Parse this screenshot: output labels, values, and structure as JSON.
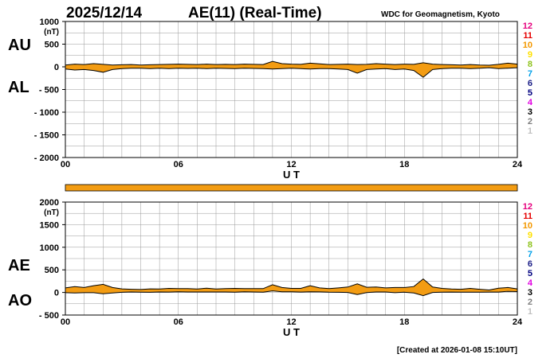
{
  "header": {
    "date": "2025/12/14",
    "title": "AE(11) (Real-Time)",
    "source": "WDC for Geomagnetism, Kyoto"
  },
  "footer": {
    "created": "[Created at 2026-01-08 15:10UT]"
  },
  "colors": {
    "fill": "#f39c12",
    "line": "#000000",
    "grid": "#999999",
    "legend": [
      "#e6007e",
      "#e60000",
      "#f39800",
      "#ffe100",
      "#8fc31f",
      "#00a0e9",
      "#1d2088",
      "#000080",
      "#e100e1",
      "#000000",
      "#808080",
      "#c0c0c0"
    ]
  },
  "legend_labels": [
    "12",
    "11",
    "10",
    "9",
    "8",
    "7",
    "6",
    "5",
    "4",
    "3",
    "2",
    "1"
  ],
  "chart_data": [
    {
      "type": "area",
      "panel": "AU/AL",
      "left_labels": [
        "AU",
        "AL"
      ],
      "unit": "(nT)",
      "xlabel": "U T",
      "xlim": [
        0,
        24
      ],
      "ylim": [
        -2000,
        1000
      ],
      "xticks": [
        "00",
        "06",
        "12",
        "18",
        "24"
      ],
      "yticks": [
        "1000",
        "500",
        "0",
        "- 500",
        "- 1000",
        "- 1500",
        "- 2000"
      ],
      "grid": true,
      "x": [
        0,
        0.5,
        1,
        1.5,
        2,
        2.5,
        3,
        3.5,
        4,
        4.5,
        5,
        5.5,
        6,
        6.5,
        7,
        7.5,
        8,
        8.5,
        9,
        9.5,
        10,
        10.5,
        11,
        11.5,
        12,
        12.5,
        13,
        13.5,
        14,
        14.5,
        15,
        15.5,
        16,
        16.5,
        17,
        17.5,
        18,
        18.5,
        19,
        19.5,
        20,
        20.5,
        21,
        21.5,
        22,
        22.5,
        23,
        23.5,
        24
      ],
      "series": [
        {
          "name": "AU",
          "values": [
            40,
            60,
            50,
            70,
            55,
            40,
            45,
            50,
            40,
            45,
            50,
            55,
            60,
            55,
            50,
            60,
            50,
            55,
            50,
            60,
            55,
            50,
            120,
            70,
            60,
            55,
            80,
            65,
            50,
            55,
            60,
            50,
            55,
            70,
            60,
            50,
            60,
            55,
            90,
            60,
            50,
            45,
            40,
            50,
            40,
            35,
            55,
            80,
            60
          ]
        },
        {
          "name": "AL",
          "values": [
            -50,
            -70,
            -60,
            -80,
            -120,
            -60,
            -40,
            -30,
            -30,
            -40,
            -30,
            -40,
            -30,
            -35,
            -30,
            -40,
            -30,
            -35,
            -40,
            -30,
            -35,
            -40,
            -50,
            -40,
            -30,
            -40,
            -50,
            -40,
            -40,
            -50,
            -60,
            -140,
            -60,
            -50,
            -40,
            -60,
            -50,
            -80,
            -230,
            -60,
            -40,
            -30,
            -30,
            -40,
            -30,
            -20,
            -40,
            -30,
            -20
          ]
        }
      ]
    },
    {
      "type": "area",
      "panel": "AE/AO",
      "left_labels": [
        "AE",
        "AO"
      ],
      "unit": "(nT)",
      "xlabel": "U T",
      "xlim": [
        0,
        24
      ],
      "ylim": [
        -500,
        2000
      ],
      "xticks": [
        "00",
        "06",
        "12",
        "18",
        "24"
      ],
      "yticks": [
        "2000",
        "1500",
        "1000",
        "500",
        "0",
        "- 500"
      ],
      "grid": true,
      "x": [
        0,
        0.5,
        1,
        1.5,
        2,
        2.5,
        3,
        3.5,
        4,
        4.5,
        5,
        5.5,
        6,
        6.5,
        7,
        7.5,
        8,
        8.5,
        9,
        9.5,
        10,
        10.5,
        11,
        11.5,
        12,
        12.5,
        13,
        13.5,
        14,
        14.5,
        15,
        15.5,
        16,
        16.5,
        17,
        17.5,
        18,
        18.5,
        19,
        19.5,
        20,
        20.5,
        21,
        21.5,
        22,
        22.5,
        23,
        23.5,
        24
      ],
      "series": [
        {
          "name": "AE",
          "values": [
            100,
            130,
            110,
            150,
            180,
            110,
            80,
            70,
            65,
            80,
            75,
            90,
            85,
            85,
            75,
            95,
            75,
            85,
            90,
            85,
            85,
            85,
            170,
            110,
            90,
            90,
            150,
            100,
            85,
            100,
            120,
            190,
            115,
            120,
            100,
            110,
            110,
            130,
            300,
            120,
            90,
            75,
            70,
            90,
            70,
            55,
            95,
            110,
            80
          ]
        },
        {
          "name": "AO",
          "values": [
            -5,
            -10,
            -5,
            -5,
            -30,
            -10,
            3,
            10,
            5,
            3,
            10,
            8,
            15,
            10,
            10,
            10,
            10,
            10,
            5,
            15,
            10,
            5,
            35,
            15,
            15,
            8,
            15,
            12,
            5,
            3,
            0,
            -45,
            -3,
            10,
            10,
            -5,
            5,
            -12,
            -70,
            0,
            5,
            8,
            5,
            5,
            5,
            8,
            8,
            25,
            20
          ]
        }
      ]
    }
  ]
}
